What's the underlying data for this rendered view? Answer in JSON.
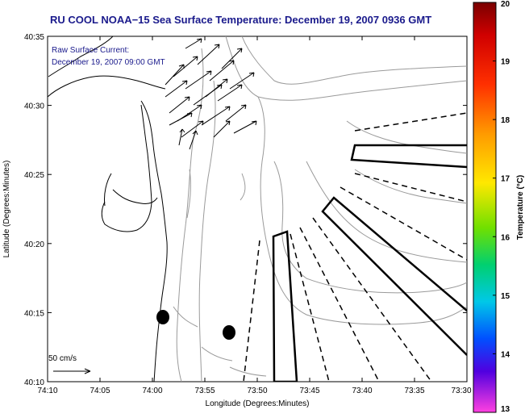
{
  "title": "RU COOL  NOAA−15  Sea Surface Temperature:  December 19, 2007 0936 GMT",
  "current_note": {
    "line1": "Raw Surface Current:",
    "line2": "December 19, 2007 09:00 GMT"
  },
  "scale_label": "50 cm/s",
  "map": {
    "xlabel": "Longitude (Degrees:Minutes)",
    "ylabel": "Latitude (Degrees:Minutes)",
    "x_ticks": [
      "74:10",
      "74:05",
      "74:00",
      "73:55",
      "73:50",
      "73:45",
      "73:40",
      "73:35",
      "73:30"
    ],
    "y_ticks": [
      "40:35",
      "40:30",
      "40:25",
      "40:20",
      "40:15",
      "40:10"
    ]
  },
  "colorbar": {
    "label": "Temperature (°C)",
    "min": 13,
    "max": 20,
    "ticks": [
      "20",
      "19",
      "18",
      "17",
      "16",
      "15",
      "14",
      "13"
    ]
  },
  "colors": {
    "title": "#1a1a8c",
    "contour": "#9a9a9a",
    "coast": "#000000"
  }
}
